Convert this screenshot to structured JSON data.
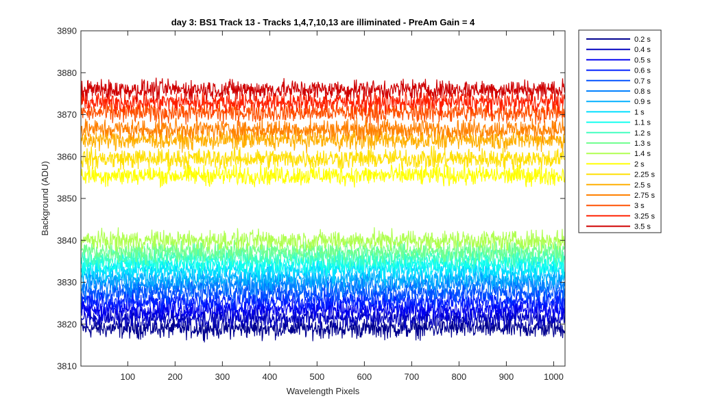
{
  "chart_data": {
    "type": "line",
    "title": "day 3: BS1  Track 13 - Tracks 1,4,7,10,13 are illiminated - PreAm Gain = 4",
    "xlabel": "Wavelength Pixels",
    "ylabel": "Background (ADU)",
    "xlim": [
      1,
      1024
    ],
    "ylim": [
      3810,
      3890
    ],
    "xticks": [
      100,
      200,
      300,
      400,
      500,
      600,
      700,
      800,
      900,
      1000
    ],
    "yticks": [
      3810,
      3820,
      3830,
      3840,
      3850,
      3860,
      3870,
      3880,
      3890
    ],
    "legend_position": "outside-right-top",
    "noise_amplitude_adu": 2.2,
    "series": [
      {
        "name": "0.2 s",
        "mean": 3819.0,
        "color": "#00008f"
      },
      {
        "name": "0.4 s",
        "mean": 3821.5,
        "color": "#0000bf"
      },
      {
        "name": "0.5 s",
        "mean": 3823.5,
        "color": "#0000ef"
      },
      {
        "name": "0.6 s",
        "mean": 3825.5,
        "color": "#0020ff"
      },
      {
        "name": "0.7 s",
        "mean": 3827.5,
        "color": "#0050ff"
      },
      {
        "name": "0.8 s",
        "mean": 3829.5,
        "color": "#0080ff"
      },
      {
        "name": "0.9 s",
        "mean": 3831.0,
        "color": "#00afff"
      },
      {
        "name": "1 s",
        "mean": 3833.0,
        "color": "#00dfff"
      },
      {
        "name": "1.1 s",
        "mean": 3834.5,
        "color": "#10ffef"
      },
      {
        "name": "1.2 s",
        "mean": 3836.0,
        "color": "#40ffbf"
      },
      {
        "name": "1.3 s",
        "mean": 3837.5,
        "color": "#70ff8f"
      },
      {
        "name": "1.4 s",
        "mean": 3840.0,
        "color": "#afff50"
      },
      {
        "name": "2 s",
        "mean": 3855.5,
        "color": "#ffff00"
      },
      {
        "name": "2.25 s",
        "mean": 3859.5,
        "color": "#ffdf00"
      },
      {
        "name": "2.5 s",
        "mean": 3864.0,
        "color": "#ffaf00"
      },
      {
        "name": "2.75 s",
        "mean": 3866.5,
        "color": "#ff8000"
      },
      {
        "name": "3 s",
        "mean": 3870.5,
        "color": "#ff5000"
      },
      {
        "name": "3.25 s",
        "mean": 3873.0,
        "color": "#ff2000"
      },
      {
        "name": "3.5 s",
        "mean": 3876.0,
        "color": "#cf0000"
      }
    ]
  }
}
